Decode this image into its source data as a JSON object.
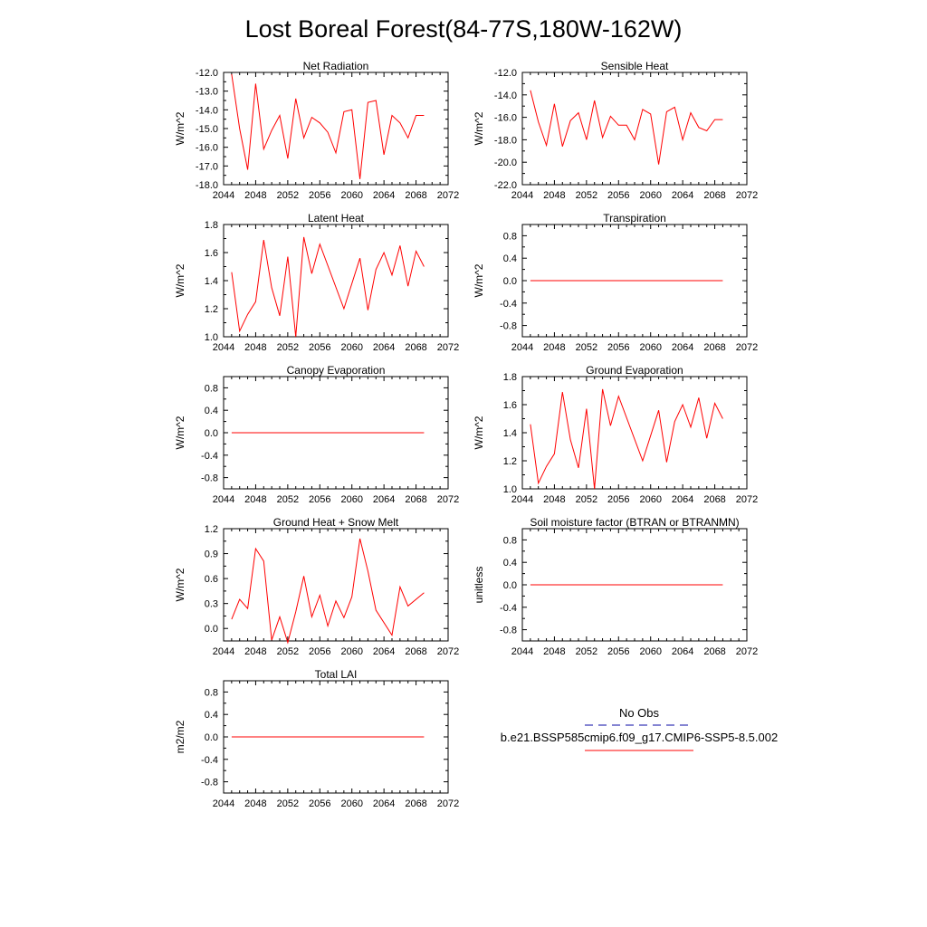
{
  "title": "Lost Boreal Forest(84-77S,180W-162W)",
  "colors": {
    "model": "#ff0000",
    "obs": "#3b3bb8",
    "axis": "#000000"
  },
  "legend": {
    "obs_label": "No Obs",
    "model_label": "b.e21.BSSP585cmip6.f09_g17.CMIP6-SSP5-8.5.002"
  },
  "chart_data": [
    {
      "type": "line",
      "title": "Net Radiation",
      "xlabel": "",
      "ylabel": "W/m^2",
      "xlim": [
        2044,
        2072
      ],
      "ylim": [
        -18.0,
        -12.0
      ],
      "x_ticks": [
        "2044",
        "2048",
        "2052",
        "2056",
        "2060",
        "2064",
        "2068",
        "2072"
      ],
      "y_ticks": [
        "-18.0",
        "-17.0",
        "-16.0",
        "-15.0",
        "-14.0",
        "-13.0",
        "-12.0"
      ],
      "grid": false,
      "series": [
        {
          "x": [
            2045,
            2046,
            2047,
            2048,
            2049,
            2050,
            2051,
            2052,
            2053,
            2054,
            2055,
            2056,
            2057,
            2058,
            2059,
            2060,
            2061,
            2062,
            2063,
            2064,
            2065,
            2066,
            2067,
            2068,
            2069
          ],
          "values": [
            -12.1,
            -15.0,
            -17.2,
            -12.6,
            -16.1,
            -15.1,
            -14.3,
            -16.6,
            -13.4,
            -15.5,
            -14.4,
            -14.7,
            -15.2,
            -16.3,
            -14.1,
            -14.0,
            -17.7,
            -13.6,
            -13.5,
            -16.4,
            -14.3,
            -14.7,
            -15.5,
            -14.3,
            -14.3
          ]
        }
      ]
    },
    {
      "type": "line",
      "title": "Sensible Heat",
      "xlabel": "",
      "ylabel": "W/m^2",
      "xlim": [
        2044,
        2072
      ],
      "ylim": [
        -22.0,
        -12.0
      ],
      "x_ticks": [
        "2044",
        "2048",
        "2052",
        "2056",
        "2060",
        "2064",
        "2068",
        "2072"
      ],
      "y_ticks": [
        "-22.0",
        "-20.0",
        "-18.0",
        "-16.0",
        "-14.0",
        "-12.0"
      ],
      "grid": false,
      "series": [
        {
          "x": [
            2045,
            2046,
            2047,
            2048,
            2049,
            2050,
            2051,
            2052,
            2053,
            2054,
            2055,
            2056,
            2057,
            2058,
            2059,
            2060,
            2061,
            2062,
            2063,
            2064,
            2065,
            2066,
            2067,
            2068,
            2069
          ],
          "values": [
            -13.6,
            -16.4,
            -18.5,
            -14.8,
            -18.6,
            -16.3,
            -15.6,
            -18.0,
            -14.5,
            -17.8,
            -15.9,
            -16.7,
            -16.7,
            -18.0,
            -15.3,
            -15.7,
            -20.2,
            -15.5,
            -15.1,
            -18.0,
            -15.6,
            -16.9,
            -17.2,
            -16.2,
            -16.2
          ]
        }
      ]
    },
    {
      "type": "line",
      "title": "Latent Heat",
      "xlabel": "",
      "ylabel": "W/m^2",
      "xlim": [
        2044,
        2072
      ],
      "ylim": [
        1.0,
        1.8
      ],
      "x_ticks": [
        "2044",
        "2048",
        "2052",
        "2056",
        "2060",
        "2064",
        "2068",
        "2072"
      ],
      "y_ticks": [
        "1.0",
        "1.2",
        "1.4",
        "1.6",
        "1.8"
      ],
      "grid": false,
      "series": [
        {
          "x": [
            2045,
            2046,
            2047,
            2048,
            2049,
            2050,
            2051,
            2052,
            2053,
            2054,
            2055,
            2056,
            2059,
            2061,
            2062,
            2063,
            2064,
            2065,
            2066,
            2067,
            2068,
            2069
          ],
          "values": [
            1.46,
            1.04,
            1.16,
            1.25,
            1.69,
            1.35,
            1.15,
            1.57,
            1.0,
            1.71,
            1.45,
            1.66,
            1.2,
            1.56,
            1.19,
            1.48,
            1.6,
            1.44,
            1.65,
            1.36,
            1.61,
            1.5
          ]
        }
      ]
    },
    {
      "type": "line",
      "title": "Transpiration",
      "xlabel": "",
      "ylabel": "W/m^2",
      "xlim": [
        2044,
        2072
      ],
      "ylim": [
        -1.0,
        1.0
      ],
      "x_ticks": [
        "2044",
        "2048",
        "2052",
        "2056",
        "2060",
        "2064",
        "2068",
        "2072"
      ],
      "y_ticks": [
        "-0.8",
        "-0.4",
        "0.0",
        "0.4",
        "0.8"
      ],
      "grid": false,
      "series": [
        {
          "x": [
            2045,
            2069
          ],
          "values": [
            0.0,
            0.0
          ]
        }
      ]
    },
    {
      "type": "line",
      "title": "Canopy Evaporation",
      "xlabel": "",
      "ylabel": "W/m^2",
      "xlim": [
        2044,
        2072
      ],
      "ylim": [
        -1.0,
        1.0
      ],
      "x_ticks": [
        "2044",
        "2048",
        "2052",
        "2056",
        "2060",
        "2064",
        "2068",
        "2072"
      ],
      "y_ticks": [
        "-0.8",
        "-0.4",
        "0.0",
        "0.4",
        "0.8"
      ],
      "grid": false,
      "series": [
        {
          "x": [
            2045,
            2069
          ],
          "values": [
            0.0,
            0.0
          ]
        }
      ]
    },
    {
      "type": "line",
      "title": "Ground Evaporation",
      "xlabel": "",
      "ylabel": "W/m^2",
      "xlim": [
        2044,
        2072
      ],
      "ylim": [
        1.0,
        1.8
      ],
      "x_ticks": [
        "2044",
        "2048",
        "2052",
        "2056",
        "2060",
        "2064",
        "2068",
        "2072"
      ],
      "y_ticks": [
        "1.0",
        "1.2",
        "1.4",
        "1.6",
        "1.8"
      ],
      "grid": false,
      "series": [
        {
          "x": [
            2045,
            2046,
            2047,
            2048,
            2049,
            2050,
            2051,
            2052,
            2053,
            2054,
            2055,
            2056,
            2059,
            2061,
            2062,
            2063,
            2064,
            2065,
            2066,
            2067,
            2068,
            2069
          ],
          "values": [
            1.46,
            1.04,
            1.16,
            1.25,
            1.69,
            1.35,
            1.15,
            1.57,
            1.0,
            1.71,
            1.45,
            1.66,
            1.2,
            1.56,
            1.19,
            1.48,
            1.6,
            1.44,
            1.65,
            1.36,
            1.61,
            1.5
          ]
        }
      ]
    },
    {
      "type": "line",
      "title": "Ground Heat + Snow Melt",
      "xlabel": "",
      "ylabel": "W/m^2",
      "xlim": [
        2044,
        2072
      ],
      "ylim": [
        -0.15,
        1.2
      ],
      "x_ticks": [
        "2044",
        "2048",
        "2052",
        "2056",
        "2060",
        "2064",
        "2068",
        "2072"
      ],
      "y_ticks": [
        "0.0",
        "0.3",
        "0.6",
        "0.9",
        "1.2"
      ],
      "grid": false,
      "series": [
        {
          "x": [
            2045,
            2046,
            2047,
            2048,
            2049,
            2050,
            2051,
            2052,
            2053,
            2054,
            2055,
            2056,
            2057,
            2058,
            2059,
            2060,
            2061,
            2062,
            2063,
            2065,
            2066,
            2067,
            2069
          ],
          "values": [
            0.11,
            0.35,
            0.24,
            0.96,
            0.81,
            -0.14,
            0.14,
            -0.17,
            0.2,
            0.63,
            0.14,
            0.4,
            0.03,
            0.33,
            0.13,
            0.38,
            1.08,
            0.69,
            0.22,
            -0.08,
            0.5,
            0.27,
            0.43
          ]
        }
      ]
    },
    {
      "type": "line",
      "title": "Soil moisture factor (BTRAN or BTRANMN)",
      "xlabel": "",
      "ylabel": "unitless",
      "xlim": [
        2044,
        2072
      ],
      "ylim": [
        -1.0,
        1.0
      ],
      "x_ticks": [
        "2044",
        "2048",
        "2052",
        "2056",
        "2060",
        "2064",
        "2068",
        "2072"
      ],
      "y_ticks": [
        "-0.8",
        "-0.4",
        "0.0",
        "0.4",
        "0.8"
      ],
      "grid": false,
      "series": [
        {
          "x": [
            2045,
            2069
          ],
          "values": [
            0.0,
            0.0
          ]
        }
      ]
    },
    {
      "type": "line",
      "title": "Total LAI",
      "xlabel": "",
      "ylabel": "m2/m2",
      "xlim": [
        2044,
        2072
      ],
      "ylim": [
        -1.0,
        1.0
      ],
      "x_ticks": [
        "2044",
        "2048",
        "2052",
        "2056",
        "2060",
        "2064",
        "2068",
        "2072"
      ],
      "y_ticks": [
        "-0.8",
        "-0.4",
        "0.0",
        "0.4",
        "0.8"
      ],
      "grid": false,
      "series": [
        {
          "x": [
            2045,
            2069
          ],
          "values": [
            0.0,
            0.0
          ]
        }
      ]
    }
  ]
}
